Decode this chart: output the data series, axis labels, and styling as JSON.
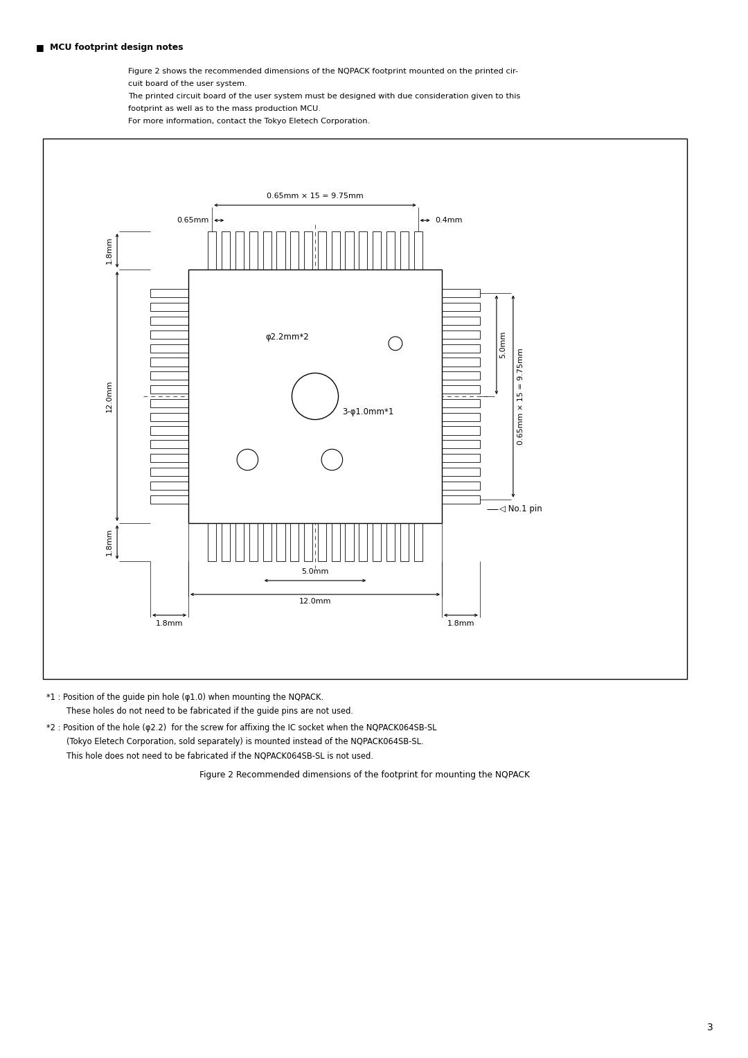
{
  "page_width": 10.8,
  "page_height": 15.27,
  "bg_color": "#ffffff",
  "title_section": "MCU footprint design notes",
  "body_text_line1": "Figure 2 shows the recommended dimensions of the NQPACK footprint mounted on the printed cir-",
  "body_text_line2": "cuit board of the user system.",
  "body_text_line3": "The printed circuit board of the user system must be designed with due consideration given to this",
  "body_text_line4": "footprint as well as to the mass production MCU.",
  "body_text_line5": "For more information, contact the Tokyo Eletech Corporation.",
  "note1_line1": "*1 : Position of the guide pin hole (φ1.0) when mounting the NQPACK.",
  "note1_line2": "        These holes do not need to be fabricated if the guide pins are not used.",
  "note2_line1": "*2 : Position of the hole (φ2.2)  for the screw for affixing the IC socket when the NQPACK064SB-SL",
  "note2_line2": "        (Tokyo Eletech Corporation, sold separately) is mounted instead of the NQPACK064SB-SL.",
  "note2_line3": "        This hole does not need to be fabricated if the NQPACK064SB-SL is not used.",
  "figure_caption": "Figure 2 Recommended dimensions of the footprint for mounting the NQPACK",
  "page_num": "3",
  "dim_065x15_top": "0.65mm × 15 = 9.75mm",
  "dim_065": "0.65mm",
  "dim_04": "0.4mm",
  "dim_18_left_top": "1.8mm",
  "dim_12_left": "12.0mm",
  "dim_18_left_bot": "1.8mm",
  "dim_5_right": "5.0mm",
  "dim_065x15_right": "0.65mm × 15 = 9.75mm",
  "dim_5_bottom": "5.0mm",
  "dim_12_bottom": "12.0mm",
  "dim_18_bl": "1.8mm",
  "dim_18_br": "1.8mm",
  "label_phi22": "φ2.2mm*2",
  "label_phi10": "3-φ1.0mm*1",
  "label_no1pin": "◁ No.1 pin"
}
